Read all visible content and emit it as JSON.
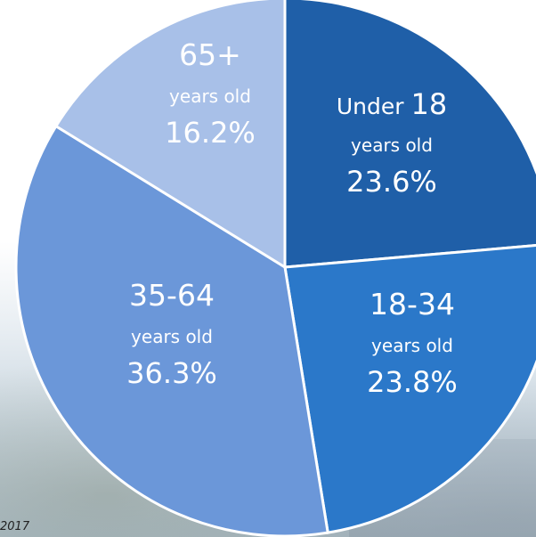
{
  "chart_data": {
    "type": "pie",
    "slices": [
      {
        "label_top": "Under",
        "label_number": "18",
        "label_sub": "years old",
        "value": 23.6,
        "value_text": "23.6%",
        "color": "#1f5fa8"
      },
      {
        "label_top": "",
        "label_number": "18-34",
        "label_sub": "years old",
        "value": 23.8,
        "value_text": "23.8%",
        "color": "#2b78c9"
      },
      {
        "label_top": "",
        "label_number": "35-64",
        "label_sub": "years old",
        "value": 36.3,
        "value_text": "36.3%",
        "color": "#6b97d9"
      },
      {
        "label_top": "",
        "label_number": "65+",
        "label_sub": "years old",
        "value": 16.2,
        "value_text": "16.2%",
        "color": "#a8c0e8"
      }
    ]
  },
  "footnote": "2017"
}
